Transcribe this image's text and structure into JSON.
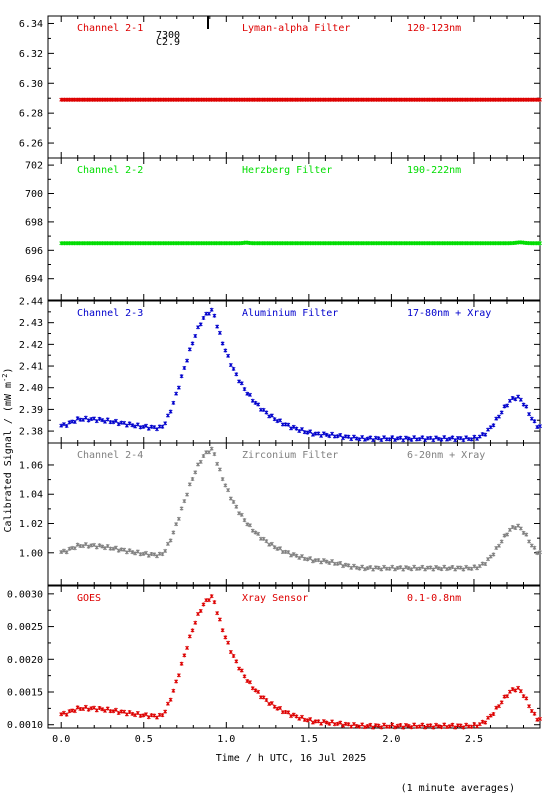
{
  "figure": {
    "ylabel_main": "Calibrated Signal / (mW m",
    "ylabel_sup": "-2",
    "ylabel_close": ")",
    "xlabel": "Time / h UTC, 16 Jul 2025",
    "footnote": "(1 minute averages)",
    "corner_label_1": "7300",
    "corner_label_2": "C2.9"
  },
  "chart_data": [
    {
      "type": "scatter",
      "channel": "Channel 2-1",
      "filter": "Lyman-alpha Filter",
      "band": "120-123nm",
      "color": "#dd0000",
      "ylim": [
        6.25,
        6.345
      ],
      "yticks": [
        6.26,
        6.28,
        6.3,
        6.32,
        6.34
      ],
      "yticklabels": [
        "6.26",
        "6.28",
        "6.30",
        "6.32",
        "6.34"
      ],
      "profile": "flat",
      "params": {
        "base": 6.289,
        "peak": 0,
        "tail": 0,
        "late": 0
      }
    },
    {
      "type": "scatter",
      "channel": "Channel 2-2",
      "filter": "Herzberg Filter",
      "band": "190-222nm",
      "color": "#00dd00",
      "ylim": [
        692.5,
        702.5
      ],
      "yticks": [
        694,
        696,
        698,
        700,
        702
      ],
      "yticklabels": [
        "694",
        "696",
        "698",
        "700",
        "702"
      ],
      "profile": "flat",
      "params": {
        "base": 696.5,
        "peak": 0,
        "tail": 0,
        "late": 0
      }
    },
    {
      "type": "scatter",
      "channel": "Channel 2-3",
      "filter": "Aluminium Filter",
      "band": "17-80nm + Xray",
      "color": "#0000cc",
      "ylim": [
        2.3745,
        2.44
      ],
      "yticks": [
        2.38,
        2.39,
        2.4,
        2.41,
        2.42,
        2.43,
        2.44
      ],
      "yticklabels": [
        "2.38",
        "2.39",
        "2.40",
        "2.41",
        "2.42",
        "2.43",
        "2.44"
      ],
      "profile": "flare",
      "params": {
        "base": 2.3825,
        "early": 2.3855,
        "dip": 2.3815,
        "peak": 2.4355,
        "plateau": 2.3785,
        "floor": 2.3765,
        "late": 2.3955,
        "end": 2.382
      }
    },
    {
      "type": "scatter",
      "channel": "Channel 2-4",
      "filter": "Zirconium Filter",
      "band": "6-20nm + Xray",
      "color": "#808080",
      "ylim": [
        0.978,
        1.075
      ],
      "yticks": [
        1.0,
        1.02,
        1.04,
        1.06
      ],
      "yticklabels": [
        "1.00",
        "1.02",
        "1.04",
        "1.06"
      ],
      "profile": "flare",
      "params": {
        "base": 1.0005,
        "early": 1.005,
        "dip": 0.9985,
        "peak": 1.0705,
        "plateau": 0.9945,
        "floor": 0.9895,
        "late": 1.018,
        "end": 1.0
      }
    },
    {
      "type": "scatter",
      "channel": "GOES",
      "filter": "Xray Sensor",
      "band": "0.1-0.8nm",
      "color": "#dd0000",
      "ylim": [
        0.00095,
        0.00312
      ],
      "yticks": [
        0.001,
        0.0015,
        0.002,
        0.0025,
        0.003
      ],
      "yticklabels": [
        "0.0010",
        "0.0015",
        "0.0020",
        "0.0025",
        "0.0030"
      ],
      "profile": "flare",
      "params": {
        "base": 0.00116,
        "early": 0.00125,
        "dip": 0.00113,
        "peak": 0.00295,
        "plateau": 0.00104,
        "floor": 0.00098,
        "late": 0.00155,
        "end": 0.00108
      }
    }
  ],
  "xaxis": {
    "xlim": [
      -0.08,
      2.9
    ],
    "xticks": [
      0.0,
      0.5,
      1.0,
      1.5,
      2.0,
      2.5
    ],
    "xticklabels": [
      "0.0",
      "0.5",
      "1.0",
      "1.5",
      "2.0",
      "2.5"
    ]
  }
}
